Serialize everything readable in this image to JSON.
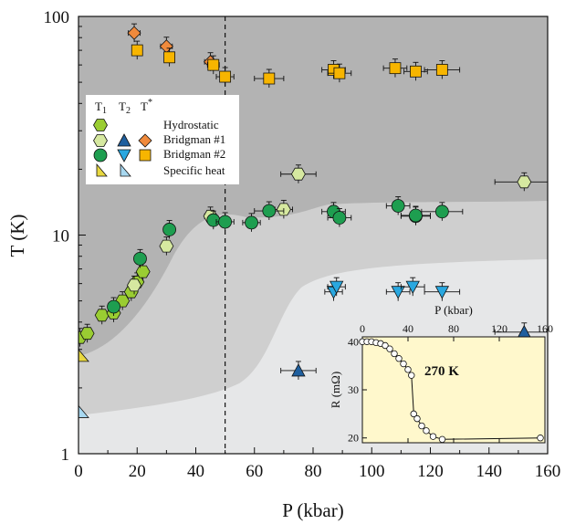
{
  "chart_data": {
    "type": "scatter",
    "xlabel": "P (kbar)",
    "ylabel": "T (K)",
    "xlim": [
      0,
      160
    ],
    "ylim": [
      1,
      100
    ],
    "yscale": "log",
    "xticks": [
      "0",
      "20",
      "40",
      "60",
      "80",
      "100",
      "120",
      "140",
      "160"
    ],
    "yticks": [
      "1",
      "10",
      "100"
    ],
    "grid": false,
    "vline_x": 50,
    "legend": {
      "placement": "upper-left",
      "headers": [
        "T",
        "T",
        "T"
      ],
      "header_subs": [
        "1",
        "2",
        "*"
      ],
      "rows": [
        "Hydrostatic",
        "Bridgman #1",
        "Bridgman #2",
        "Specific heat"
      ]
    },
    "colors": {
      "hydro": "#9acd32",
      "bridgman1_t1": "#d6e8a0",
      "bridgman2_t1": "#1e9e50",
      "t2_b1": "#1f5f9e",
      "t2_b2": "#2aa8e0",
      "tstar_b1": "#f08a3c",
      "tstar_b2": "#f7b500",
      "specific_heat_t1": "#e8d840",
      "specific_heat_t2": "#a8d8f0",
      "region_dark": "#b3b3b3",
      "region_mid": "#cfcfcf",
      "region_light": "#e6e7e8",
      "inset_bg": "#fff8cc"
    },
    "series": [
      {
        "name": "Hydrostatic",
        "marker": "hexagon",
        "color": "#9acd32",
        "points": [
          [
            0.5,
            3.4
          ],
          [
            3,
            3.55
          ],
          [
            8,
            4.3
          ],
          [
            12,
            4.4
          ],
          [
            15,
            5.0
          ],
          [
            18,
            5.5
          ],
          [
            20,
            6.1
          ],
          [
            22,
            6.8
          ]
        ]
      },
      {
        "name": "Bridgman #1",
        "marker": "hexagon",
        "color": "#d6e8a0",
        "points": [
          [
            19,
            5.9
          ],
          [
            30,
            8.9
          ],
          [
            45,
            12.2
          ],
          [
            70,
            13.1
          ],
          [
            75,
            19
          ],
          [
            152,
            17.5
          ]
        ],
        "xerr": [
          0,
          1,
          2,
          3,
          6,
          10
        ]
      },
      {
        "name": "Bridgman #2",
        "marker": "circle",
        "color": "#1e9e50",
        "points": [
          [
            12,
            4.7
          ],
          [
            21,
            7.8
          ],
          [
            31,
            10.6
          ],
          [
            46,
            11.7
          ],
          [
            50,
            11.5
          ],
          [
            59,
            11.4
          ],
          [
            65,
            12.9
          ],
          [
            87,
            12.8
          ],
          [
            89,
            12.0
          ],
          [
            109,
            13.6
          ],
          [
            115,
            12.2
          ],
          [
            115,
            12.3
          ],
          [
            124,
            12.8
          ]
        ],
        "xerr": [
          1,
          2,
          2,
          2,
          3,
          3,
          5,
          4,
          4,
          4,
          5,
          5,
          7
        ]
      },
      {
        "name": "Bridgman #1",
        "marker": "triangle-up",
        "color": "#1f5f9e",
        "points": [
          [
            75,
            2.4
          ],
          [
            152,
            3.6
          ]
        ],
        "xerr": [
          6,
          10
        ]
      },
      {
        "name": "Bridgman #2",
        "marker": "triangle-down",
        "color": "#2aa8e0",
        "points": [
          [
            87,
            5.5
          ],
          [
            88,
            5.8
          ],
          [
            109,
            5.5
          ],
          [
            114,
            5.8
          ],
          [
            124,
            5.5
          ]
        ],
        "xerr": [
          3,
          3,
          4,
          4,
          6
        ]
      },
      {
        "name": "Bridgman #1",
        "marker": "diamond",
        "color": "#f08a3c",
        "points": [
          [
            19,
            84
          ],
          [
            30,
            73
          ],
          [
            45,
            62
          ]
        ],
        "xerr": [
          2,
          2,
          2
        ]
      },
      {
        "name": "Bridgman #2",
        "marker": "square",
        "color": "#f7b500",
        "points": [
          [
            20,
            70
          ],
          [
            31,
            65
          ],
          [
            46,
            60
          ],
          [
            50,
            53
          ],
          [
            65,
            52
          ],
          [
            87,
            57
          ],
          [
            89,
            55
          ],
          [
            108,
            58
          ],
          [
            115,
            56
          ],
          [
            124,
            57
          ]
        ],
        "xerr": [
          1,
          1,
          2,
          3,
          5,
          4,
          4,
          4,
          4,
          6
        ]
      },
      {
        "name": "Specific heat",
        "marker": "halftri",
        "color": "#e8d840",
        "points": [
          [
            0,
            2.8
          ]
        ]
      },
      {
        "name": "Specific heat",
        "marker": "halftri",
        "color": "#a8d8f0",
        "points": [
          [
            0,
            1.55
          ]
        ]
      }
    ],
    "inset": {
      "xlabel": "P (kbar)",
      "ylabel": "R (mΩ)",
      "annotation": "270 K",
      "xlim": [
        0,
        160
      ],
      "ylim": [
        19,
        41
      ],
      "xticks": [
        "0",
        "40",
        "80",
        "120",
        "160"
      ],
      "yticks": [
        "20",
        "30",
        "40"
      ],
      "points": [
        [
          0,
          40
        ],
        [
          4,
          40
        ],
        [
          8,
          40
        ],
        [
          12,
          39.8
        ],
        [
          16,
          39.6
        ],
        [
          20,
          39.2
        ],
        [
          24,
          38.5
        ],
        [
          28,
          37.5
        ],
        [
          32,
          36.5
        ],
        [
          36,
          35.4
        ],
        [
          40,
          34.2
        ],
        [
          43,
          33
        ],
        [
          45,
          25
        ],
        [
          48,
          24
        ],
        [
          52,
          22.5
        ],
        [
          56,
          21.5
        ],
        [
          62,
          20.3
        ],
        [
          70,
          19.7
        ],
        [
          156,
          20.0
        ]
      ]
    }
  }
}
